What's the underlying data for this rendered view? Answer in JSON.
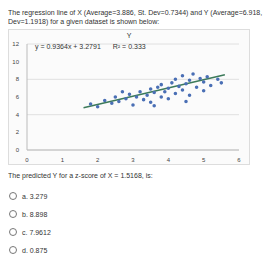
{
  "header": {
    "line1": "The regression line of X (Average=3.886, St. Dev=0.7344) and Y (Average=6.918,",
    "line2": "Dev=1.1918) for a given dataset is shown below:"
  },
  "chart_data": {
    "type": "scatter",
    "title": "Y",
    "annotations": [
      "y = 0.9364x + 3.2791",
      "R² = 0.333"
    ],
    "xlim": [
      0,
      6
    ],
    "xticks": [
      0,
      1,
      2,
      3,
      4,
      5,
      6
    ],
    "ylim": [
      0,
      12
    ],
    "yticks": [
      0,
      2,
      4,
      6,
      8,
      10,
      12
    ],
    "grid": true,
    "series": [
      {
        "type": "scatter",
        "color": "#4a6fb5",
        "marker": "circle",
        "x": [
          1.8,
          2.0,
          2.2,
          2.4,
          2.5,
          2.6,
          2.8,
          2.9,
          3.0,
          3.1,
          3.2,
          3.3,
          3.4,
          3.5,
          3.5,
          3.6,
          3.7,
          3.8,
          3.8,
          3.9,
          4.0,
          4.0,
          4.1,
          4.2,
          4.2,
          4.3,
          4.4,
          4.4,
          4.5,
          4.6,
          4.6,
          4.7,
          4.8,
          4.9,
          5.0,
          5.0,
          5.1,
          5.2,
          5.4,
          5.5,
          3.6,
          4.5,
          2.7
        ],
        "values": [
          5.2,
          4.9,
          5.6,
          5.3,
          6.0,
          5.5,
          5.8,
          6.3,
          5.1,
          6.0,
          6.6,
          5.7,
          6.2,
          6.9,
          5.4,
          6.5,
          7.1,
          6.0,
          7.4,
          6.6,
          7.0,
          5.8,
          7.6,
          6.4,
          8.0,
          7.2,
          6.8,
          8.4,
          7.5,
          6.2,
          7.9,
          8.6,
          7.1,
          8.1,
          6.7,
          7.7,
          8.3,
          7.3,
          8.0,
          7.6,
          5.0,
          5.5,
          6.6
        ]
      },
      {
        "type": "line",
        "color": "#3c7a5a",
        "line_style": "solid",
        "x": [
          1.6,
          5.6
        ],
        "values": [
          4.777,
          8.523
        ]
      }
    ]
  },
  "question": {
    "text": "The predicted Y for a z-score of X = 1.5168, is:",
    "options": [
      "a. 3.279",
      "b. 8.898",
      "c. 7.9612",
      "d. 0.875"
    ]
  }
}
